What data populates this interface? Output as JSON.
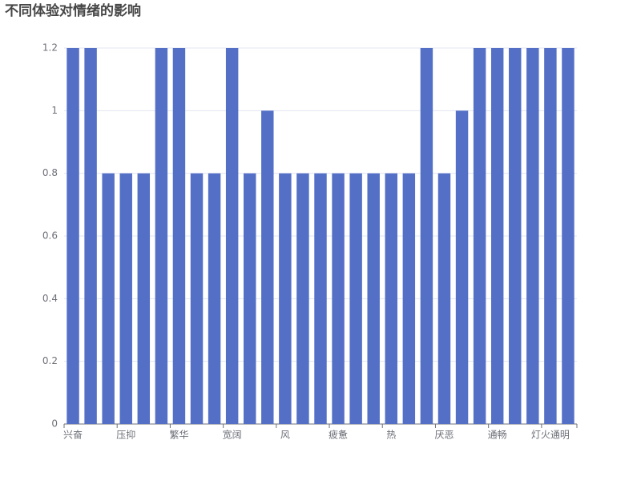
{
  "chart_data": {
    "type": "bar",
    "title": "不同体验对情绪的影响",
    "categories": [
      "兴奋",
      null,
      null,
      "压抑",
      null,
      null,
      "繁华",
      null,
      null,
      "宽阔",
      null,
      null,
      "风",
      null,
      null,
      "疲惫",
      null,
      null,
      "热",
      null,
      null,
      "厌恶",
      null,
      null,
      "通畅",
      null,
      null,
      "灯火通明",
      null
    ],
    "values": [
      1.2,
      1.2,
      0.8,
      0.8,
      0.8,
      1.2,
      1.2,
      0.8,
      0.8,
      1.2,
      0.8,
      1.0,
      0.8,
      0.8,
      0.8,
      0.8,
      0.8,
      0.8,
      0.8,
      0.8,
      1.2,
      0.8,
      1.0,
      1.2,
      1.2,
      1.2,
      1.2,
      1.2,
      1.2
    ],
    "color": "#5470c6",
    "ylim": [
      0,
      1.2
    ],
    "yticks": [
      0,
      0.2,
      0.4,
      0.6,
      0.8,
      1,
      1.2
    ],
    "grid": true
  }
}
